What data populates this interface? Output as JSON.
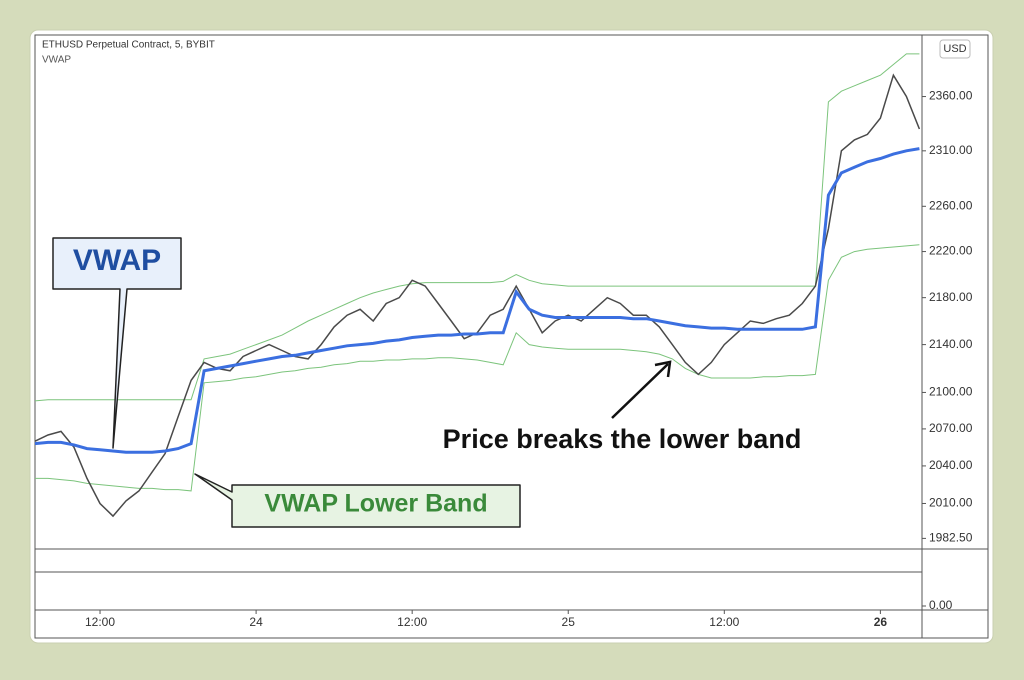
{
  "chart_data": {
    "type": "line",
    "title": "ETHUSD Perpetual Contract, 5, BYBIT",
    "subtitle": "VWAP",
    "currency": "USD",
    "log_scale": true,
    "x": [
      7,
      8,
      9,
      10,
      11,
      12,
      13,
      14,
      15,
      16,
      17,
      18,
      19,
      20,
      21,
      22,
      23,
      24,
      25,
      26,
      27,
      28,
      29,
      30,
      31,
      32,
      33,
      34,
      35,
      36,
      37,
      38,
      39,
      40,
      41,
      42,
      43,
      44,
      45,
      46,
      47,
      48,
      49,
      50,
      51,
      52,
      53,
      54,
      55,
      56,
      57,
      58,
      59,
      60,
      61,
      62,
      63,
      64,
      65,
      66,
      67,
      68,
      69,
      70,
      71,
      72,
      73,
      74,
      75
    ],
    "series": [
      {
        "color": "#4a4a4a",
        "values": [
          2060,
          2065,
          2068,
          2055,
          2030,
          2010,
          2000,
          2012,
          2020,
          2035,
          2050,
          2080,
          2110,
          2125,
          2120,
          2118,
          2130,
          2135,
          2140,
          2135,
          2130,
          2128,
          2140,
          2155,
          2165,
          2170,
          2160,
          2175,
          2180,
          2195,
          2190,
          2175,
          2160,
          2145,
          2150,
          2165,
          2170,
          2190,
          2170,
          2150,
          2160,
          2165,
          2160,
          2170,
          2180,
          2175,
          2165,
          2165,
          2155,
          2140,
          2125,
          2115,
          2125,
          2140,
          2150,
          2160,
          2158,
          2162,
          2165,
          2175,
          2190,
          2240,
          2310,
          2320,
          2325,
          2340,
          2380,
          2360,
          2330
        ]
      },
      {
        "name": "VWAP",
        "color": "#3b6fe0",
        "values": [
          2058,
          2059,
          2059,
          2057,
          2054,
          2053,
          2052,
          2051,
          2051,
          2051,
          2052,
          2054,
          2058,
          2118,
          2120,
          2122,
          2124,
          2126,
          2128,
          2130,
          2131,
          2133,
          2135,
          2137,
          2139,
          2140,
          2141,
          2143,
          2144,
          2146,
          2147,
          2148,
          2148,
          2149,
          2149,
          2150,
          2150,
          2185,
          2170,
          2165,
          2163,
          2163,
          2163,
          2163,
          2163,
          2163,
          2162,
          2162,
          2160,
          2158,
          2156,
          2155,
          2154,
          2154,
          2153,
          2153,
          2153,
          2153,
          2153,
          2153,
          2155,
          2270,
          2290,
          2295,
          2300,
          2303,
          2307,
          2310,
          2312
        ]
      },
      {
        "color": "#7cc47c",
        "values": [
          2093,
          2094,
          2094,
          2094,
          2094,
          2094,
          2094,
          2094,
          2094,
          2094,
          2094,
          2094,
          2094,
          2128,
          2130,
          2132,
          2136,
          2140,
          2144,
          2148,
          2154,
          2160,
          2165,
          2170,
          2175,
          2180,
          2184,
          2187,
          2190,
          2192,
          2193,
          2193,
          2193,
          2193,
          2193,
          2193,
          2194,
          2200,
          2195,
          2192,
          2191,
          2190,
          2190,
          2190,
          2190,
          2190,
          2190,
          2190,
          2190,
          2190,
          2190,
          2190,
          2190,
          2190,
          2190,
          2190,
          2190,
          2190,
          2190,
          2190,
          2190,
          2355,
          2365,
          2370,
          2375,
          2380,
          2390,
          2400,
          2400
        ]
      },
      {
        "color": "#7cc47c",
        "values": [
          2030,
          2030,
          2029,
          2028,
          2026,
          2025,
          2024,
          2023,
          2022,
          2022,
          2021,
          2021,
          2020,
          2108,
          2109,
          2110,
          2112,
          2113,
          2115,
          2117,
          2118,
          2120,
          2121,
          2123,
          2124,
          2126,
          2126,
          2127,
          2127,
          2128,
          2128,
          2129,
          2129,
          2128,
          2127,
          2125,
          2123,
          2150,
          2140,
          2138,
          2137,
          2136,
          2136,
          2136,
          2136,
          2136,
          2135,
          2134,
          2132,
          2128,
          2120,
          2115,
          2112,
          2112,
          2112,
          2112,
          2113,
          2113,
          2114,
          2114,
          2115,
          2195,
          2215,
          2220,
          2222,
          2223,
          2224,
          2225,
          2226
        ]
      }
    ],
    "xlim": [
      7,
      75.2
    ],
    "xticks": [
      {
        "value": 12,
        "label": "12:00"
      },
      {
        "value": 24,
        "label": "24"
      },
      {
        "value": 36,
        "label": "12:00"
      },
      {
        "value": 48,
        "label": "25"
      },
      {
        "value": 60,
        "label": "12:00"
      },
      {
        "value": 72,
        "label": "26"
      }
    ],
    "ylim": [
      1975,
      2418
    ],
    "yticks": [
      {
        "value": 1982.5,
        "label": "1982.50"
      },
      {
        "value": 2010,
        "label": "2010.00"
      },
      {
        "value": 2040,
        "label": "2040.00"
      },
      {
        "value": 2070,
        "label": "2070.00"
      },
      {
        "value": 2100,
        "label": "2100.00"
      },
      {
        "value": 2140,
        "label": "2140.00"
      },
      {
        "value": 2180,
        "label": "2180.00"
      },
      {
        "value": 2220,
        "label": "2220.00"
      },
      {
        "value": 2260,
        "label": "2260.00"
      },
      {
        "value": 2310,
        "label": "2310.00"
      },
      {
        "value": 2360,
        "label": "2360.00"
      }
    ],
    "lower_pane_yticks": [
      {
        "value": 0,
        "label": "0.00"
      }
    ],
    "annotations": [
      "VWAP",
      "VWAP Lower Band",
      "Price breaks the lower band"
    ]
  }
}
